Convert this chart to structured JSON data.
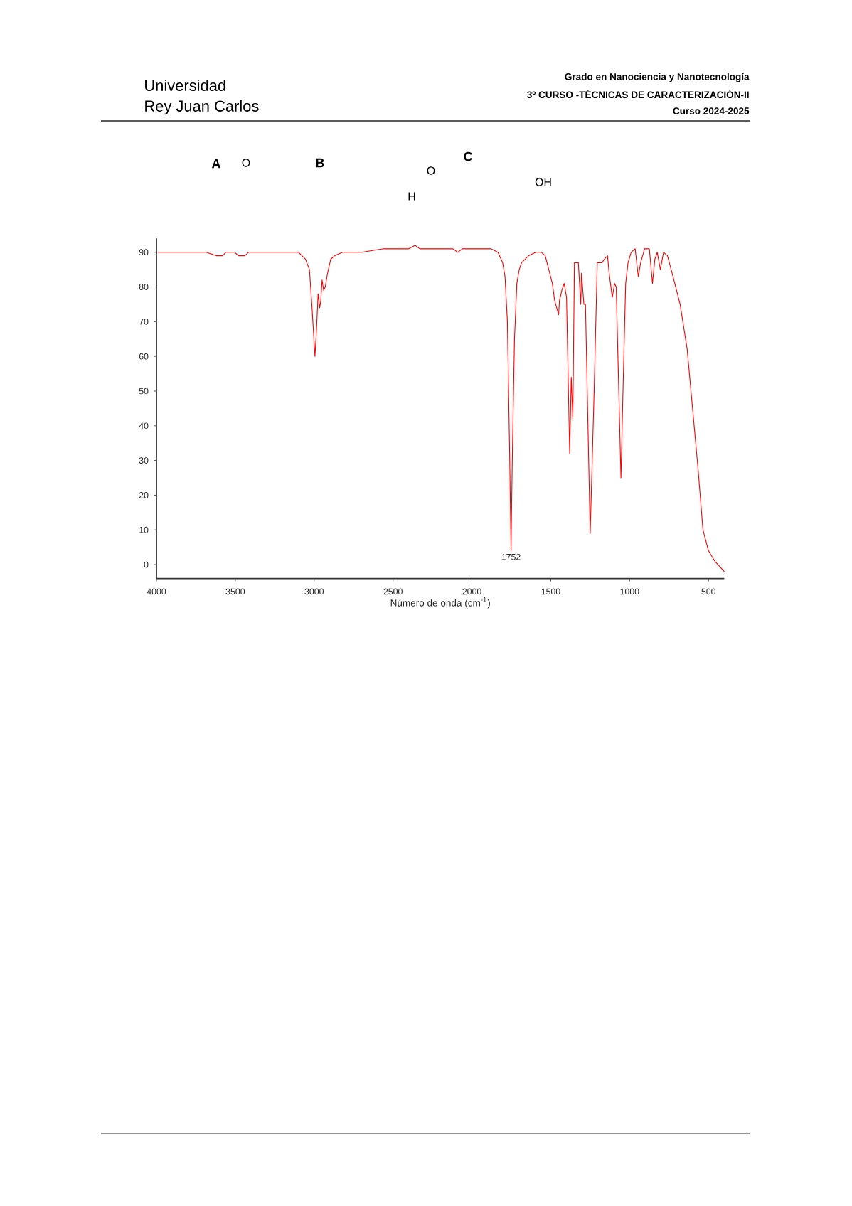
{
  "chart_data": {
    "type": "line",
    "xlabel": "Número de onda (cm$^{-1}$)",
    "annotations": [
      "Universidad",
      "Rey Juan Carlos",
      "Grado en Nanociencia y Nanotecnología",
      "3º CURSO -TÉCNICAS DE CARACTERIZACIÓN-II",
      "Curso 2024-2025",
      "A",
      "O",
      "B",
      "O",
      "H",
      "C",
      "OH",
      {
        "text": "1752",
        "x": 1752,
        "y": 4
      }
    ],
    "color": "#ff0000",
    "x": [
      3990,
      3700,
      3685,
      3620,
      3580,
      3560,
      3535,
      3505,
      3480,
      3460,
      3440,
      3415,
      3300,
      3145,
      3100,
      3055,
      3030,
      3015,
      2995,
      2985,
      2975,
      2965,
      2958,
      2950,
      2940,
      2930,
      2915,
      2895,
      2870,
      2820,
      2700,
      2560,
      2450,
      2400,
      2360,
      2330,
      2200,
      2120,
      2090,
      2060,
      1950,
      1880,
      1835,
      1805,
      1790,
      1775,
      1760,
      1752,
      1744,
      1730,
      1715,
      1700,
      1685,
      1640,
      1595,
      1560,
      1535,
      1490,
      1475,
      1450,
      1445,
      1430,
      1415,
      1400,
      1380,
      1370,
      1360,
      1350,
      1325,
      1310,
      1305,
      1290,
      1280,
      1250,
      1225,
      1205,
      1175,
      1160,
      1140,
      1130,
      1110,
      1095,
      1085,
      1055,
      1040,
      1025,
      1010,
      990,
      965,
      945,
      930,
      905,
      875,
      855,
      840,
      825,
      805,
      785,
      760,
      725,
      680,
      635,
      605,
      565,
      535,
      500,
      460,
      400
    ],
    "values": [
      90,
      90,
      90,
      89,
      89,
      90,
      90,
      90,
      89,
      89,
      89,
      90,
      90,
      90,
      90,
      88,
      85,
      75,
      60,
      68,
      78,
      74,
      76,
      82,
      79,
      80,
      84,
      88,
      89,
      90,
      90,
      91,
      91,
      91,
      92,
      91,
      91,
      91,
      90,
      91,
      91,
      91,
      90,
      87,
      83,
      70,
      30,
      4,
      30,
      65,
      81,
      85,
      87,
      89,
      90,
      90,
      89,
      81,
      76,
      72,
      76,
      79,
      81,
      77,
      32,
      54,
      42,
      87,
      87,
      75,
      84,
      75,
      75,
      9,
      50,
      87,
      87,
      88,
      89,
      84,
      77,
      81,
      80,
      25,
      54,
      81,
      87,
      90,
      91,
      83,
      87,
      91,
      91,
      81,
      88,
      90,
      85,
      90,
      89,
      83,
      75,
      62,
      47,
      27,
      10,
      4,
      1,
      -2
    ],
    "xlim": [
      4000,
      400
    ],
    "ylim": [
      -4,
      94
    ],
    "xticks": [
      4000,
      3500,
      3000,
      2500,
      2000,
      1500,
      1000,
      500
    ],
    "yticks": [
      0,
      10,
      20,
      30,
      40,
      50,
      60,
      70,
      80,
      90
    ]
  }
}
